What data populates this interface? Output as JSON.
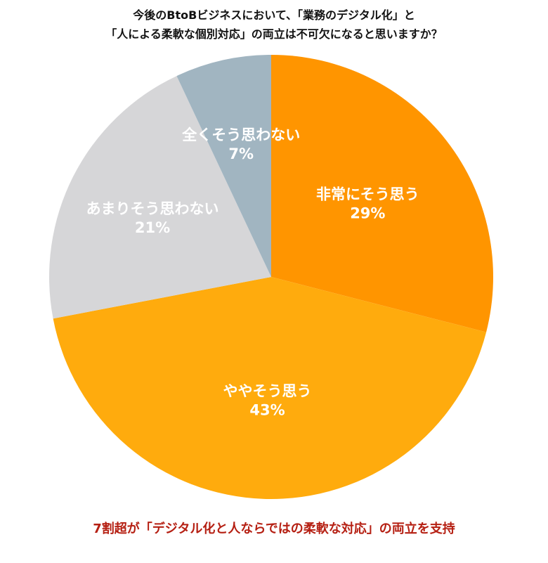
{
  "title": {
    "line1": "今後のBtoBビジネスにおいて、「業務のデジタル化」と",
    "line2": "「人による柔軟な個別対応」の両立は不可欠になると思いますか？"
  },
  "caption": "7割超が「デジタル化と人ならではの柔軟な対応」の両立を支持",
  "chart_data": {
    "type": "pie",
    "title": "今後のBtoBビジネスにおいて、「業務のデジタル化」と「人による柔軟な個別対応」の両立は不可欠になると思いますか？",
    "categories": [
      "非常にそう思う",
      "ややそう思う",
      "あまりそう思わない",
      "全くそう思わない"
    ],
    "values": [
      29,
      43,
      21,
      7
    ],
    "value_labels": [
      "29%",
      "43%",
      "21%",
      "7%"
    ],
    "colors": [
      "#FF9500",
      "#FFAB0D",
      "#D6D6D8",
      "#A1B5C1"
    ],
    "start_angle": "12 o'clock",
    "direction": "clockwise",
    "legend": "none (labels inside slices)",
    "annotation": "7割超が「デジタル化と人ならではの柔軟な対応」の両立を支持"
  }
}
